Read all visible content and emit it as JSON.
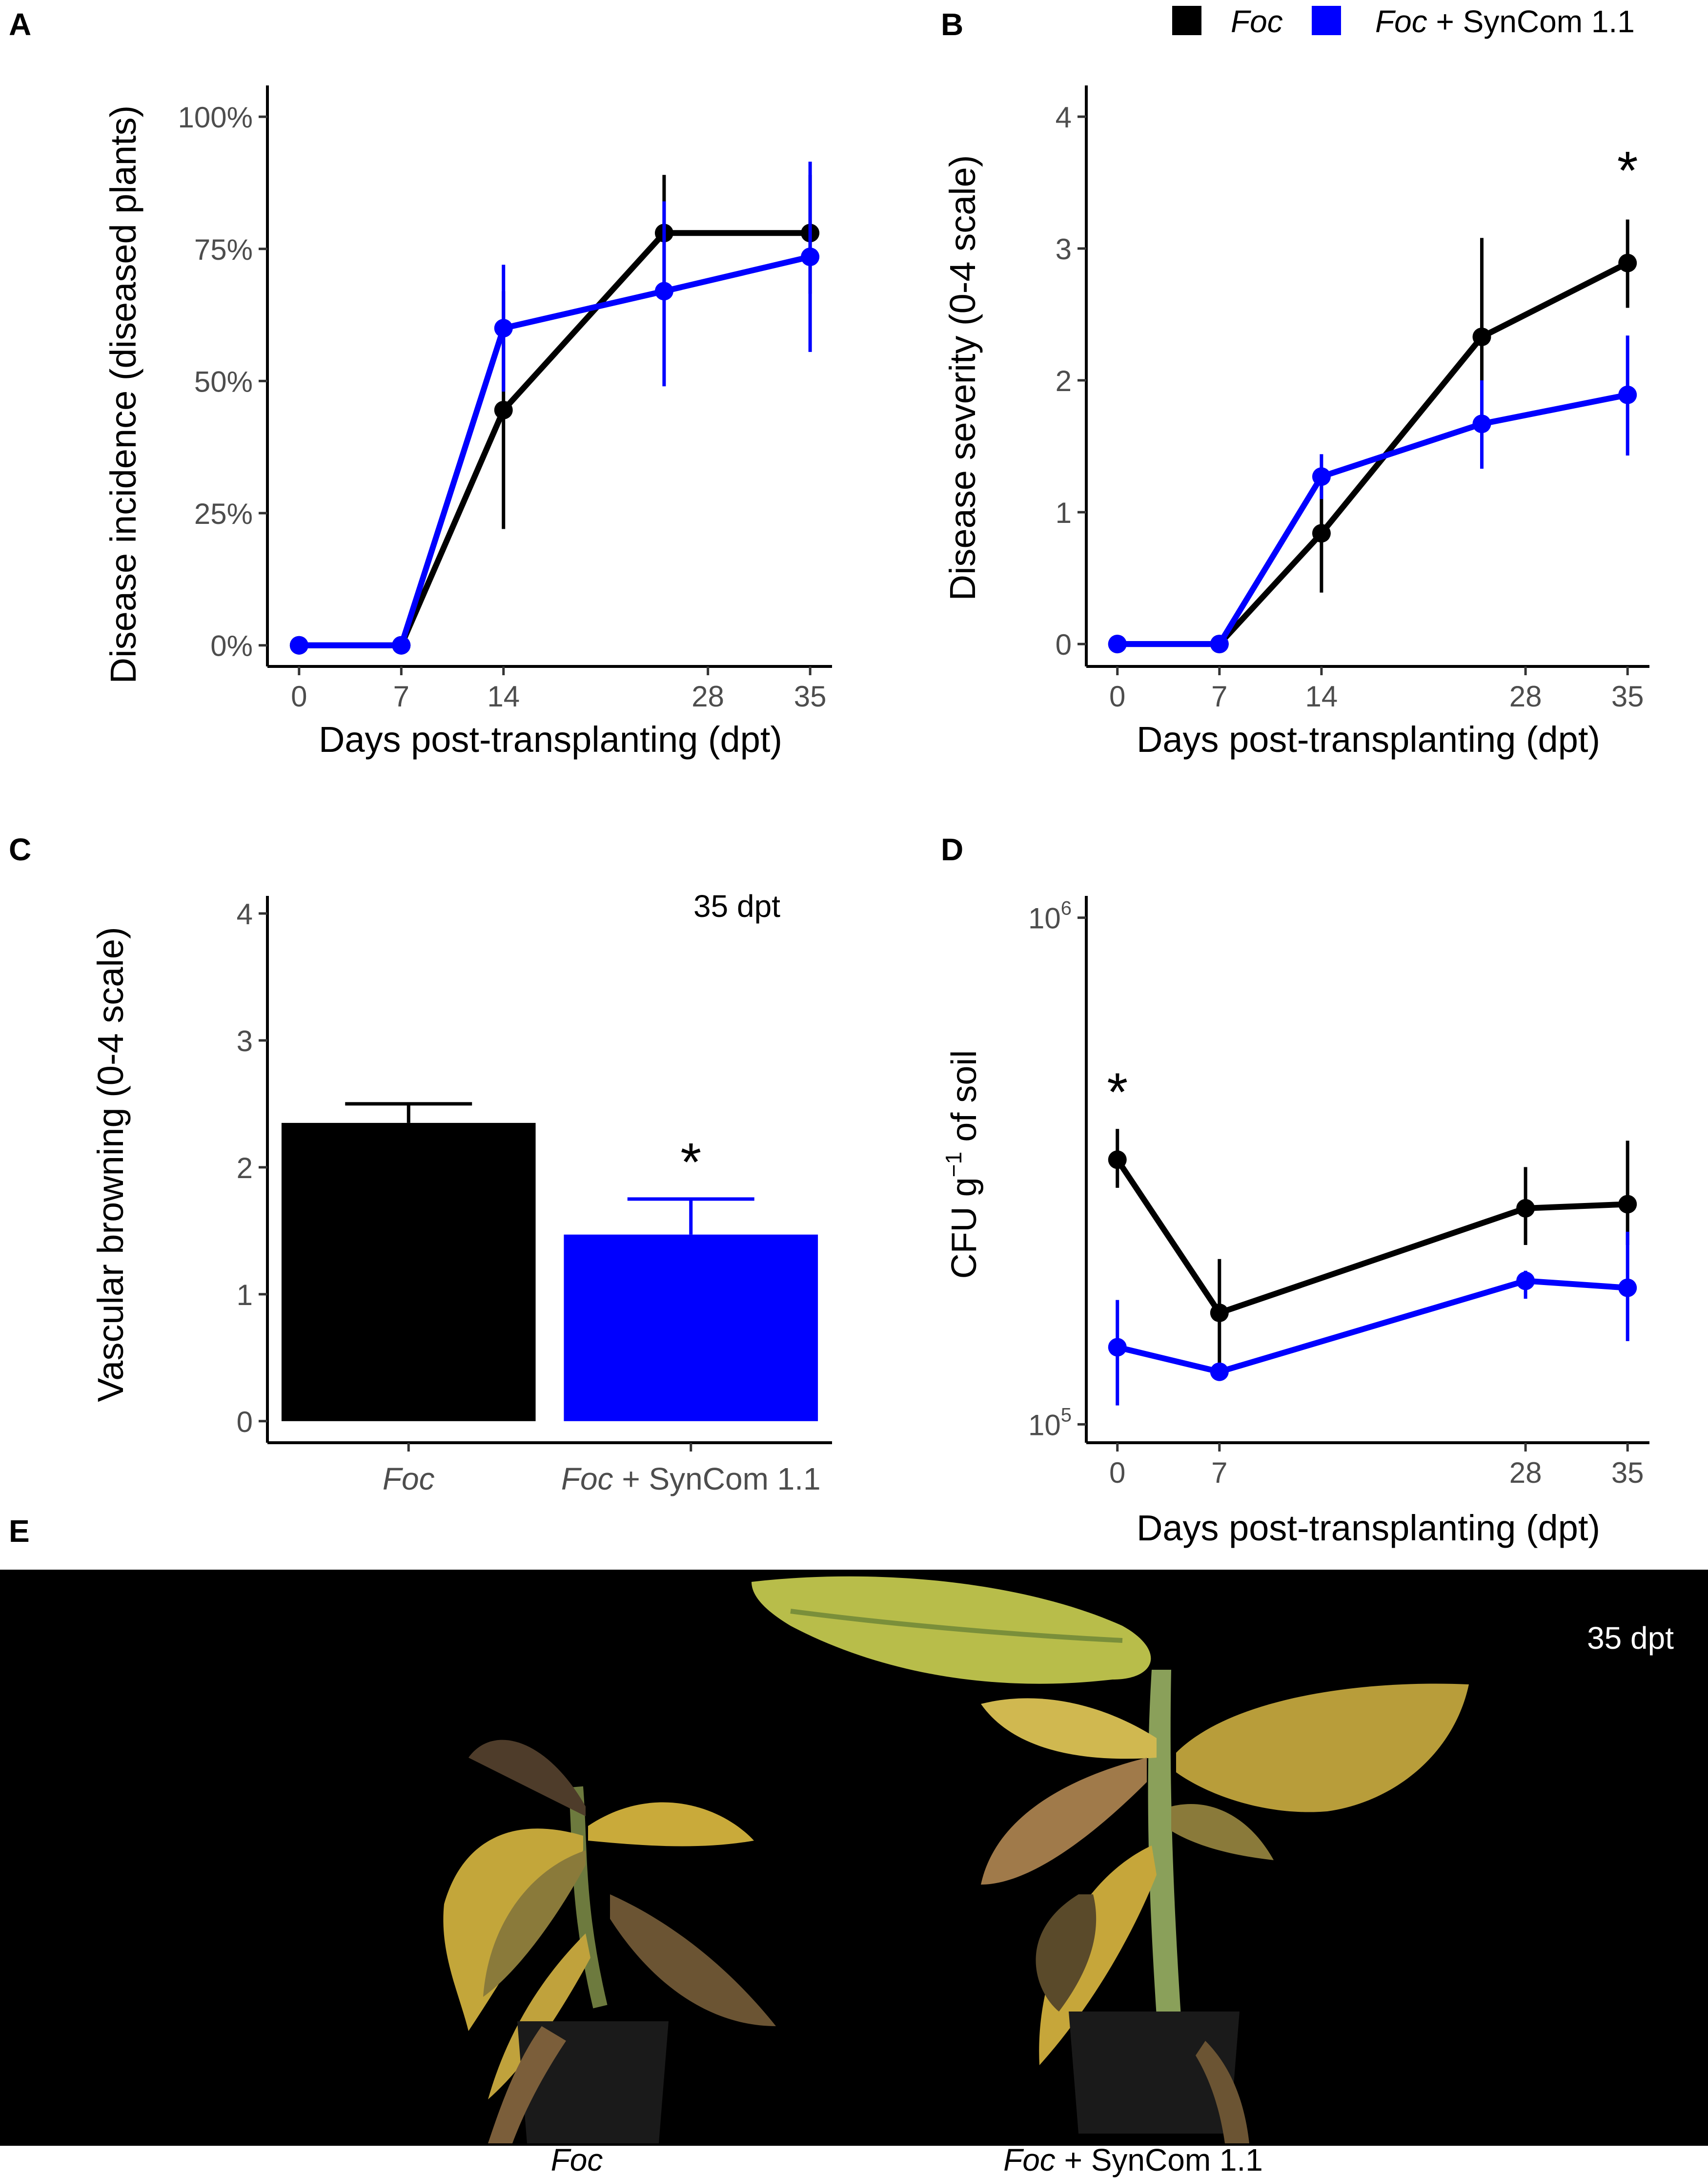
{
  "legend": {
    "entries": [
      {
        "label": "Foc",
        "italic_part": "Foc",
        "rest": "",
        "color": "#000000"
      },
      {
        "label": "Foc + SynCom 1.1",
        "italic_part": "Foc",
        "rest": " + SynCom 1.1",
        "color": "#0000ff"
      }
    ]
  },
  "chart_data": [
    {
      "panel": "A",
      "type": "line",
      "ylabel": "Disease incidence (diseased plants)",
      "xlabel": "Days post-transplanting (dpt)",
      "x_ticks": [
        0,
        7,
        14,
        28,
        35
      ],
      "y_ticks": [
        0,
        25,
        50,
        75,
        100
      ],
      "y_tick_labels": [
        "0%",
        "25%",
        "50%",
        "75%",
        "100%"
      ],
      "xlim": [
        -2,
        36.5
      ],
      "ylim": [
        -4,
        105
      ],
      "series": [
        {
          "name": "Foc",
          "color": "#000000",
          "x": [
            0,
            7,
            14,
            25,
            35
          ],
          "y": [
            0,
            0,
            44.5,
            78,
            78
          ],
          "err_low": [
            0,
            0,
            22,
            67,
            66.5
          ],
          "err_high": [
            0,
            0,
            67,
            89,
            89
          ]
        },
        {
          "name": "Foc + SynCom 1.1",
          "color": "#0000ff",
          "x": [
            0,
            7,
            14,
            25,
            35
          ],
          "y": [
            0,
            0,
            60,
            67,
            73.5
          ],
          "err_low": [
            0,
            0,
            48,
            49,
            55.5
          ],
          "err_high": [
            0,
            0,
            72,
            84,
            91.5
          ]
        }
      ],
      "annotations": []
    },
    {
      "panel": "B",
      "type": "line",
      "ylabel": "Disease severity (0-4 scale)",
      "xlabel": "Days post-transplanting (dpt)",
      "x_ticks": [
        0,
        7,
        14,
        28,
        35
      ],
      "y_ticks": [
        0,
        1,
        2,
        3,
        4
      ],
      "y_tick_labels": [
        "0",
        "1",
        "2",
        "3",
        "4"
      ],
      "xlim": [
        -2,
        36.5
      ],
      "ylim": [
        -0.17,
        4.2
      ],
      "series": [
        {
          "name": "Foc",
          "color": "#000000",
          "x": [
            0,
            7,
            14,
            25,
            35
          ],
          "y": [
            0,
            0,
            0.84,
            2.33,
            2.89
          ],
          "err_low": [
            0,
            0,
            0.39,
            1.6,
            2.55
          ],
          "err_high": [
            0,
            0,
            1.28,
            3.08,
            3.22
          ]
        },
        {
          "name": "Foc + SynCom 1.1",
          "color": "#0000ff",
          "x": [
            0,
            7,
            14,
            25,
            35
          ],
          "y": [
            0,
            0,
            1.27,
            1.67,
            1.89
          ],
          "err_low": [
            0,
            0,
            1.1,
            1.33,
            1.43
          ],
          "err_high": [
            0,
            0,
            1.44,
            2.0,
            2.34
          ]
        }
      ],
      "annotations": [
        {
          "text": "*",
          "x": 35,
          "y": 3.6
        }
      ]
    },
    {
      "panel": "C",
      "type": "bar",
      "ylabel": "Vascular browning (0-4 scale)",
      "categories": [
        {
          "label": "Foc",
          "italic_part": "Foc",
          "rest": ""
        },
        {
          "label": "Foc + SynCom 1.1",
          "italic_part": "Foc",
          "rest": " + SynCom 1.1"
        }
      ],
      "values": [
        2.35,
        1.47
      ],
      "err_high": [
        2.5,
        1.75
      ],
      "colors": [
        "#000000",
        "#0000ff"
      ],
      "y_ticks": [
        0,
        1,
        2,
        3,
        4
      ],
      "y_tick_labels": [
        "0",
        "1",
        "2",
        "3",
        "4"
      ],
      "ylim": [
        -0.17,
        4.1
      ],
      "note": "35 dpt",
      "annotations": [
        {
          "text": "*",
          "category": 1,
          "y": 2.05
        }
      ]
    },
    {
      "panel": "D",
      "type": "line",
      "yscale": "log",
      "ylabel_main": "CFU g",
      "ylabel_sup": "−1",
      "ylabel_rest": "of soil",
      "xlabel": "Days post-transplanting (dpt)",
      "x_ticks": [
        0,
        7,
        28,
        35
      ],
      "y_ticks": [
        100000,
        1000000
      ],
      "y_tick_base": "10",
      "y_tick_exponents": [
        "5",
        "6"
      ],
      "xlim": [
        -2,
        36.5
      ],
      "ylim": [
        92000,
        1080000
      ],
      "series": [
        {
          "name": "Foc",
          "color": "#000000",
          "x": [
            0,
            7,
            28,
            35
          ],
          "y": [
            333000,
            166000,
            267000,
            272000
          ],
          "err_low": [
            293000,
            130000,
            226000,
            226000
          ],
          "err_high": [
            383000,
            212000,
            322000,
            363000
          ]
        },
        {
          "name": "Foc + SynCom 1.1",
          "color": "#0000ff",
          "x": [
            0,
            7,
            28,
            35
          ],
          "y": [
            142000,
            127000,
            192000,
            186000
          ],
          "err_low": [
            109000,
            127000,
            177000,
            146000
          ],
          "err_high": [
            176000,
            127000,
            201000,
            240000
          ]
        }
      ],
      "annotations": [
        {
          "text": "*",
          "x": 0,
          "y": 455000
        }
      ]
    }
  ],
  "panel_labels": [
    "A",
    "B",
    "C",
    "D",
    "E"
  ],
  "photo": {
    "timepoint": "35 dpt",
    "caption_left": {
      "italic_part": "Foc",
      "rest": ""
    },
    "caption_right": {
      "italic_part": "Foc",
      "rest": " + SynCom 1.1"
    }
  },
  "colors": {
    "foc": "#000000",
    "syncom": "#0000ff",
    "axis": "#000000",
    "tick_text": "#4d4d4d"
  }
}
